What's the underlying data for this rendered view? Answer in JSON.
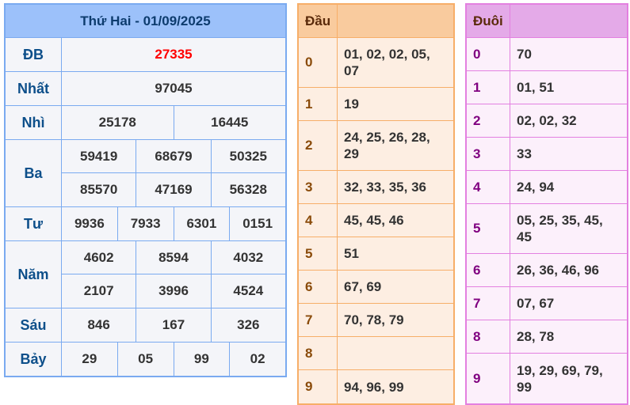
{
  "results": {
    "title": "Thứ Hai - 01/09/2025",
    "prizes": [
      {
        "label": "ĐB",
        "rows": [
          [
            "27335"
          ]
        ],
        "highlight": true
      },
      {
        "label": "Nhất",
        "rows": [
          [
            "97045"
          ]
        ]
      },
      {
        "label": "Nhì",
        "rows": [
          [
            "25178",
            "16445"
          ]
        ]
      },
      {
        "label": "Ba",
        "rows": [
          [
            "59419",
            "68679",
            "50325"
          ],
          [
            "85570",
            "47169",
            "56328"
          ]
        ]
      },
      {
        "label": "Tư",
        "rows": [
          [
            "9936",
            "7933",
            "6301",
            "0151"
          ]
        ]
      },
      {
        "label": "Năm",
        "rows": [
          [
            "4602",
            "8594",
            "4032"
          ],
          [
            "2107",
            "3996",
            "4524"
          ]
        ]
      },
      {
        "label": "Sáu",
        "rows": [
          [
            "846",
            "167",
            "326"
          ]
        ]
      },
      {
        "label": "Bảy",
        "rows": [
          [
            "29",
            "05",
            "99",
            "02"
          ]
        ]
      }
    ],
    "colors": {
      "header_bg": "#9cc1fa",
      "border": "#7aaaf0",
      "special": "#ff0000",
      "label": "#0d4f8a"
    }
  },
  "dau": {
    "header": "Đầu",
    "rows": [
      {
        "k": "0",
        "v": "01, 02, 02, 05, 07"
      },
      {
        "k": "1",
        "v": "19"
      },
      {
        "k": "2",
        "v": "24, 25, 26, 28, 29"
      },
      {
        "k": "3",
        "v": "32, 33, 35, 36"
      },
      {
        "k": "4",
        "v": "45, 45, 46"
      },
      {
        "k": "5",
        "v": "51"
      },
      {
        "k": "6",
        "v": "67, 69"
      },
      {
        "k": "7",
        "v": "70, 78, 79"
      },
      {
        "k": "8",
        "v": ""
      },
      {
        "k": "9",
        "v": "94, 96, 99"
      }
    ],
    "colors": {
      "header_bg": "#f9cb9e",
      "border": "#f7ae68"
    }
  },
  "duoi": {
    "header": "Đuôi",
    "rows": [
      {
        "k": "0",
        "v": "70"
      },
      {
        "k": "1",
        "v": "01, 51"
      },
      {
        "k": "2",
        "v": "02, 02, 32"
      },
      {
        "k": "3",
        "v": "33"
      },
      {
        "k": "4",
        "v": "24, 94"
      },
      {
        "k": "5",
        "v": "05, 25, 35, 45, 45"
      },
      {
        "k": "6",
        "v": "26, 36, 46, 96"
      },
      {
        "k": "7",
        "v": "07, 67"
      },
      {
        "k": "8",
        "v": "28, 78"
      },
      {
        "k": "9",
        "v": "19, 29, 69, 79, 99"
      }
    ],
    "colors": {
      "header_bg": "#e4aae8",
      "border": "#e380e0"
    }
  }
}
